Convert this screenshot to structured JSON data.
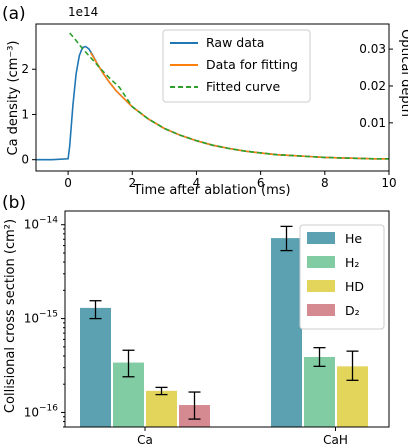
{
  "colors": {
    "raw": "#1f77b4",
    "fit_data": "#ff7f0e",
    "fitted": "#2ca02c",
    "He": "#5ba1b1",
    "H2": "#82cca4",
    "HD": "#e3d55b",
    "D2": "#d48a90"
  },
  "chart_data": [
    {
      "panel_label": "(a)",
      "type": "line",
      "xlabel": "Time after ablation (ms)",
      "ylabel": "Ca density (cm⁻³)",
      "ylabel_right": "Optical depth",
      "y_offset_text": "1e14",
      "xlim": [
        -1,
        10
      ],
      "ylim": [
        -0.25,
        3.0
      ],
      "xticks": [
        0,
        2,
        4,
        6,
        8,
        10
      ],
      "yticks": [
        0,
        1,
        2
      ],
      "yticks_right": [
        0.01,
        0.02,
        0.03
      ],
      "legend_position": "top-right",
      "grid": false,
      "series": [
        {
          "name": "Raw data",
          "style": "solid",
          "color_key": "raw",
          "x": [
            -1.0,
            -0.5,
            0.0,
            0.05,
            0.15,
            0.25,
            0.35,
            0.45,
            0.55,
            0.65,
            0.75,
            0.9,
            1.1,
            1.3,
            1.5,
            2.0,
            2.5,
            3.0,
            3.5,
            4.0,
            4.5,
            5.0,
            5.5,
            6.0,
            6.5,
            7.0,
            7.5,
            8.0,
            8.5,
            9.0,
            9.5,
            10.0
          ],
          "y": [
            0.0,
            0.0,
            0.02,
            0.3,
            1.2,
            1.9,
            2.3,
            2.48,
            2.5,
            2.45,
            2.33,
            2.13,
            1.9,
            1.7,
            1.52,
            1.17,
            0.9,
            0.69,
            0.54,
            0.42,
            0.32,
            0.25,
            0.19,
            0.15,
            0.11,
            0.09,
            0.07,
            0.05,
            0.04,
            0.03,
            0.02,
            0.02
          ]
        },
        {
          "name": "Data for fitting",
          "style": "solid",
          "color_key": "fit_data",
          "x": [
            0.7,
            0.9,
            1.1,
            1.3,
            1.5,
            2.0,
            2.5,
            3.0,
            3.5,
            4.0,
            4.5,
            5.0,
            5.5,
            6.0,
            6.5,
            7.0,
            7.5,
            8.0,
            8.5,
            9.0,
            9.5,
            10.0
          ],
          "y": [
            2.37,
            2.13,
            1.9,
            1.7,
            1.52,
            1.17,
            0.9,
            0.69,
            0.54,
            0.42,
            0.32,
            0.25,
            0.19,
            0.15,
            0.11,
            0.09,
            0.07,
            0.05,
            0.04,
            0.03,
            0.02,
            0.02
          ]
        },
        {
          "name": "Fitted curve",
          "style": "dashed",
          "color_key": "fitted",
          "x": [
            0.05,
            0.2,
            0.4,
            0.6,
            0.8,
            1.0,
            1.3,
            1.6,
            2.0,
            2.5,
            3.0,
            3.5,
            4.0,
            4.5,
            5.0,
            5.5,
            6.0,
            6.5,
            7.0,
            7.5,
            8.0,
            8.5,
            9.0,
            9.5,
            10.0
          ],
          "y": [
            2.8,
            2.68,
            2.5,
            2.34,
            2.18,
            2.02,
            1.8,
            1.6,
            1.17,
            0.9,
            0.69,
            0.54,
            0.42,
            0.32,
            0.25,
            0.19,
            0.15,
            0.11,
            0.09,
            0.07,
            0.05,
            0.04,
            0.03,
            0.02,
            0.02
          ]
        }
      ]
    },
    {
      "panel_label": "(b)",
      "type": "bar",
      "ylabel": "Collisional cross section (cm²)",
      "yscale": "log",
      "ylim": [
        7e-17,
        1.4e-14
      ],
      "ytick_values": [
        1e-16,
        1e-15,
        1e-14
      ],
      "ytick_labels": [
        {
          "base": "10",
          "exp": "−16"
        },
        {
          "base": "10",
          "exp": "−15"
        },
        {
          "base": "10",
          "exp": "−14"
        }
      ],
      "categories": [
        "Ca",
        "CaH"
      ],
      "legend_position": "top-right",
      "grid": false,
      "series": [
        {
          "name": "He",
          "color_key": "He",
          "values": [
            1.3e-15,
            7.2e-15
          ],
          "err_low": [
            1e-15,
            5.3e-15
          ],
          "err_high": [
            1.55e-15,
            9.6e-15
          ]
        },
        {
          "name": "H₂",
          "color_key": "H2",
          "values": [
            3.4e-16,
            3.9e-16
          ],
          "err_low": [
            2.4e-16,
            3.1e-16
          ],
          "err_high": [
            4.6e-16,
            4.9e-16
          ]
        },
        {
          "name": "HD",
          "color_key": "HD",
          "values": [
            1.7e-16,
            3.1e-16
          ],
          "err_low": [
            1.55e-16,
            2.2e-16
          ],
          "err_high": [
            1.85e-16,
            4.5e-16
          ]
        },
        {
          "name": "D₂",
          "color_key": "D2",
          "values": [
            1.2e-16,
            null
          ],
          "err_low": [
            8.5e-17,
            null
          ],
          "err_high": [
            1.65e-16,
            null
          ]
        }
      ]
    }
  ]
}
